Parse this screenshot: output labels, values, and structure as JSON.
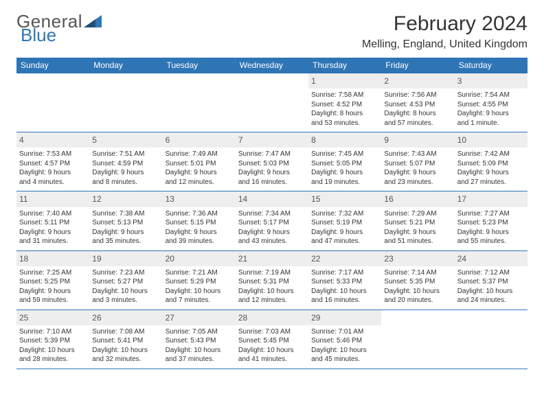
{
  "brand": {
    "text1": "General",
    "text2": "Blue",
    "tri_color": "#2e75b6"
  },
  "title": "February 2024",
  "location": "Melling, England, United Kingdom",
  "colors": {
    "header_bg": "#2e75b6",
    "header_text": "#ffffff",
    "grid_border": "#2e75b6",
    "daynum_bg": "#eeeeee",
    "text": "#333333",
    "page_bg": "#ffffff"
  },
  "typography": {
    "day_font_size": 10,
    "header_font_size": 12,
    "title_font_size": 30
  },
  "day_headers": [
    "Sunday",
    "Monday",
    "Tuesday",
    "Wednesday",
    "Thursday",
    "Friday",
    "Saturday"
  ],
  "weeks": [
    [
      null,
      null,
      null,
      null,
      {
        "n": "1",
        "sunrise": "Sunrise: 7:58 AM",
        "sunset": "Sunset: 4:52 PM",
        "dl1": "Daylight: 8 hours",
        "dl2": "and 53 minutes."
      },
      {
        "n": "2",
        "sunrise": "Sunrise: 7:56 AM",
        "sunset": "Sunset: 4:53 PM",
        "dl1": "Daylight: 8 hours",
        "dl2": "and 57 minutes."
      },
      {
        "n": "3",
        "sunrise": "Sunrise: 7:54 AM",
        "sunset": "Sunset: 4:55 PM",
        "dl1": "Daylight: 9 hours",
        "dl2": "and 1 minute."
      }
    ],
    [
      {
        "n": "4",
        "sunrise": "Sunrise: 7:53 AM",
        "sunset": "Sunset: 4:57 PM",
        "dl1": "Daylight: 9 hours",
        "dl2": "and 4 minutes."
      },
      {
        "n": "5",
        "sunrise": "Sunrise: 7:51 AM",
        "sunset": "Sunset: 4:59 PM",
        "dl1": "Daylight: 9 hours",
        "dl2": "and 8 minutes."
      },
      {
        "n": "6",
        "sunrise": "Sunrise: 7:49 AM",
        "sunset": "Sunset: 5:01 PM",
        "dl1": "Daylight: 9 hours",
        "dl2": "and 12 minutes."
      },
      {
        "n": "7",
        "sunrise": "Sunrise: 7:47 AM",
        "sunset": "Sunset: 5:03 PM",
        "dl1": "Daylight: 9 hours",
        "dl2": "and 16 minutes."
      },
      {
        "n": "8",
        "sunrise": "Sunrise: 7:45 AM",
        "sunset": "Sunset: 5:05 PM",
        "dl1": "Daylight: 9 hours",
        "dl2": "and 19 minutes."
      },
      {
        "n": "9",
        "sunrise": "Sunrise: 7:43 AM",
        "sunset": "Sunset: 5:07 PM",
        "dl1": "Daylight: 9 hours",
        "dl2": "and 23 minutes."
      },
      {
        "n": "10",
        "sunrise": "Sunrise: 7:42 AM",
        "sunset": "Sunset: 5:09 PM",
        "dl1": "Daylight: 9 hours",
        "dl2": "and 27 minutes."
      }
    ],
    [
      {
        "n": "11",
        "sunrise": "Sunrise: 7:40 AM",
        "sunset": "Sunset: 5:11 PM",
        "dl1": "Daylight: 9 hours",
        "dl2": "and 31 minutes."
      },
      {
        "n": "12",
        "sunrise": "Sunrise: 7:38 AM",
        "sunset": "Sunset: 5:13 PM",
        "dl1": "Daylight: 9 hours",
        "dl2": "and 35 minutes."
      },
      {
        "n": "13",
        "sunrise": "Sunrise: 7:36 AM",
        "sunset": "Sunset: 5:15 PM",
        "dl1": "Daylight: 9 hours",
        "dl2": "and 39 minutes."
      },
      {
        "n": "14",
        "sunrise": "Sunrise: 7:34 AM",
        "sunset": "Sunset: 5:17 PM",
        "dl1": "Daylight: 9 hours",
        "dl2": "and 43 minutes."
      },
      {
        "n": "15",
        "sunrise": "Sunrise: 7:32 AM",
        "sunset": "Sunset: 5:19 PM",
        "dl1": "Daylight: 9 hours",
        "dl2": "and 47 minutes."
      },
      {
        "n": "16",
        "sunrise": "Sunrise: 7:29 AM",
        "sunset": "Sunset: 5:21 PM",
        "dl1": "Daylight: 9 hours",
        "dl2": "and 51 minutes."
      },
      {
        "n": "17",
        "sunrise": "Sunrise: 7:27 AM",
        "sunset": "Sunset: 5:23 PM",
        "dl1": "Daylight: 9 hours",
        "dl2": "and 55 minutes."
      }
    ],
    [
      {
        "n": "18",
        "sunrise": "Sunrise: 7:25 AM",
        "sunset": "Sunset: 5:25 PM",
        "dl1": "Daylight: 9 hours",
        "dl2": "and 59 minutes."
      },
      {
        "n": "19",
        "sunrise": "Sunrise: 7:23 AM",
        "sunset": "Sunset: 5:27 PM",
        "dl1": "Daylight: 10 hours",
        "dl2": "and 3 minutes."
      },
      {
        "n": "20",
        "sunrise": "Sunrise: 7:21 AM",
        "sunset": "Sunset: 5:29 PM",
        "dl1": "Daylight: 10 hours",
        "dl2": "and 7 minutes."
      },
      {
        "n": "21",
        "sunrise": "Sunrise: 7:19 AM",
        "sunset": "Sunset: 5:31 PM",
        "dl1": "Daylight: 10 hours",
        "dl2": "and 12 minutes."
      },
      {
        "n": "22",
        "sunrise": "Sunrise: 7:17 AM",
        "sunset": "Sunset: 5:33 PM",
        "dl1": "Daylight: 10 hours",
        "dl2": "and 16 minutes."
      },
      {
        "n": "23",
        "sunrise": "Sunrise: 7:14 AM",
        "sunset": "Sunset: 5:35 PM",
        "dl1": "Daylight: 10 hours",
        "dl2": "and 20 minutes."
      },
      {
        "n": "24",
        "sunrise": "Sunrise: 7:12 AM",
        "sunset": "Sunset: 5:37 PM",
        "dl1": "Daylight: 10 hours",
        "dl2": "and 24 minutes."
      }
    ],
    [
      {
        "n": "25",
        "sunrise": "Sunrise: 7:10 AM",
        "sunset": "Sunset: 5:39 PM",
        "dl1": "Daylight: 10 hours",
        "dl2": "and 28 minutes."
      },
      {
        "n": "26",
        "sunrise": "Sunrise: 7:08 AM",
        "sunset": "Sunset: 5:41 PM",
        "dl1": "Daylight: 10 hours",
        "dl2": "and 32 minutes."
      },
      {
        "n": "27",
        "sunrise": "Sunrise: 7:05 AM",
        "sunset": "Sunset: 5:43 PM",
        "dl1": "Daylight: 10 hours",
        "dl2": "and 37 minutes."
      },
      {
        "n": "28",
        "sunrise": "Sunrise: 7:03 AM",
        "sunset": "Sunset: 5:45 PM",
        "dl1": "Daylight: 10 hours",
        "dl2": "and 41 minutes."
      },
      {
        "n": "29",
        "sunrise": "Sunrise: 7:01 AM",
        "sunset": "Sunset: 5:46 PM",
        "dl1": "Daylight: 10 hours",
        "dl2": "and 45 minutes."
      },
      null,
      null
    ]
  ]
}
